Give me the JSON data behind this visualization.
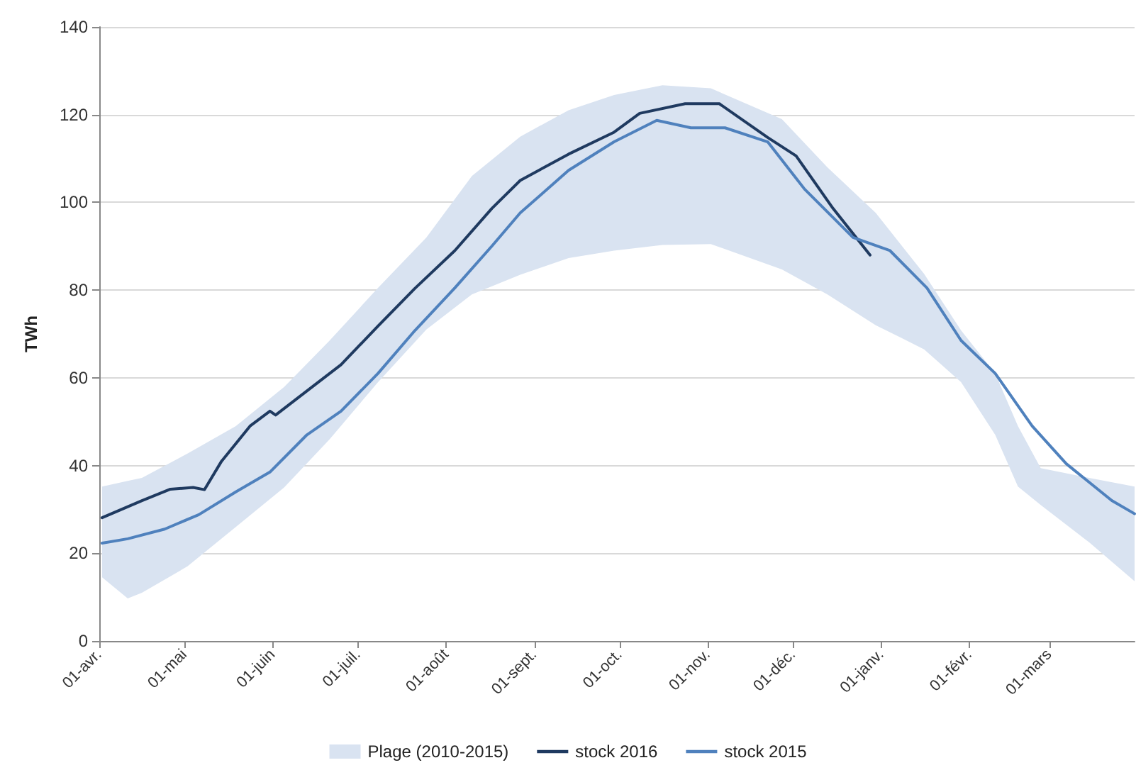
{
  "chart_data": {
    "type": "line",
    "ylabel": "TWh",
    "xlim": [
      "2016-04-01",
      "2017-03-31"
    ],
    "xticks": [
      {
        "value": "2016-04-01",
        "label": "01-avr."
      },
      {
        "value": "2016-05-01",
        "label": "01-mai"
      },
      {
        "value": "2016-06-01",
        "label": "01-juin"
      },
      {
        "value": "2016-07-01",
        "label": "01-juil."
      },
      {
        "value": "2016-08-01",
        "label": "01-août"
      },
      {
        "value": "2016-09-01",
        "label": "01-sept."
      },
      {
        "value": "2016-10-01",
        "label": "01-oct."
      },
      {
        "value": "2016-11-01",
        "label": "01-nov."
      },
      {
        "value": "2016-12-01",
        "label": "01-déc."
      },
      {
        "value": "2017-01-01",
        "label": "01-janv."
      },
      {
        "value": "2017-02-01",
        "label": "01-févr."
      },
      {
        "value": "2017-03-01",
        "label": "01-mars"
      }
    ],
    "ylim": [
      0,
      140
    ],
    "yticks": [
      0,
      20,
      40,
      60,
      80,
      100,
      120,
      140
    ],
    "grid": "y",
    "legend": "bottom",
    "marker": "none",
    "line_style": "solid",
    "series": [
      {
        "name": "Plage (2010-2015)",
        "type": "area",
        "color": "#d9e3f1",
        "x": [
          "2016-04-02",
          "2016-04-11",
          "2016-04-16",
          "2016-05-02",
          "2016-05-19",
          "2016-06-05",
          "2016-06-21",
          "2016-07-08",
          "2016-07-25",
          "2016-08-10",
          "2016-08-27",
          "2016-09-13",
          "2016-09-29",
          "2016-10-16",
          "2016-11-02",
          "2016-11-27",
          "2016-12-13",
          "2016-12-30",
          "2017-01-16",
          "2017-01-29",
          "2017-02-10",
          "2017-02-18",
          "2017-02-26",
          "2017-03-15",
          "2017-03-31"
        ],
        "values": [
          null,
          null,
          null,
          null,
          null,
          null,
          null,
          null,
          null,
          null,
          null,
          null,
          null,
          null,
          null,
          null,
          null,
          null,
          null,
          null,
          null,
          null,
          null,
          null,
          null
        ],
        "lower": [
          14.5,
          9.7,
          11,
          17,
          26,
          35,
          46,
          59,
          71,
          79,
          83.5,
          87.3,
          89,
          90.3,
          90.5,
          84.7,
          79,
          72,
          66.5,
          59,
          47,
          35.2,
          31,
          22.5,
          13.6
        ],
        "upper": [
          35.2,
          36.5,
          37.2,
          42.7,
          49,
          57.9,
          68.5,
          80.5,
          92,
          106,
          115,
          121,
          124.5,
          126.7,
          126,
          119,
          108,
          97.6,
          83.7,
          70.8,
          61,
          49,
          39.4,
          37.2,
          35.2
        ]
      },
      {
        "name": "stock 2016",
        "color": "#1f3a60",
        "x": [
          "2016-04-02",
          "2016-04-16",
          "2016-04-26",
          "2016-05-04",
          "2016-05-08",
          "2016-05-14",
          "2016-05-24",
          "2016-05-31",
          "2016-06-02",
          "2016-06-13",
          "2016-06-25",
          "2016-07-08",
          "2016-07-21",
          "2016-08-04",
          "2016-08-17",
          "2016-08-27",
          "2016-09-13",
          "2016-09-29",
          "2016-10-08",
          "2016-10-24",
          "2016-11-05",
          "2016-11-22",
          "2016-12-02",
          "2016-12-15",
          "2016-12-28"
        ],
        "values": [
          28.1,
          32,
          34.6,
          35,
          34.5,
          41,
          49,
          52.4,
          51.5,
          57,
          63,
          71.8,
          80.4,
          89,
          98.6,
          105,
          111,
          116,
          120.3,
          122.5,
          122.5,
          114.8,
          110.6,
          98.6,
          88
        ]
      },
      {
        "name": "stock 2015",
        "color": "#4f81bd",
        "x": [
          "2016-04-02",
          "2016-04-11",
          "2016-04-24",
          "2016-05-06",
          "2016-05-19",
          "2016-05-31",
          "2016-06-13",
          "2016-06-25",
          "2016-07-08",
          "2016-07-21",
          "2016-08-04",
          "2016-08-17",
          "2016-08-27",
          "2016-09-13",
          "2016-09-29",
          "2016-10-14",
          "2016-10-26",
          "2016-11-07",
          "2016-11-22",
          "2016-12-05",
          "2016-12-22",
          "2017-01-04",
          "2017-01-17",
          "2017-01-29",
          "2017-02-10",
          "2017-02-23",
          "2017-03-07",
          "2017-03-23",
          "2017-03-31"
        ],
        "values": [
          22.3,
          23.3,
          25.5,
          28.8,
          34,
          38.5,
          47,
          52.4,
          61,
          70.8,
          80.5,
          90,
          97.6,
          107.3,
          113.8,
          118.7,
          117,
          117,
          113.8,
          103,
          92,
          89,
          80.5,
          68.5,
          61,
          49,
          40.4,
          32,
          29
        ]
      }
    ]
  }
}
